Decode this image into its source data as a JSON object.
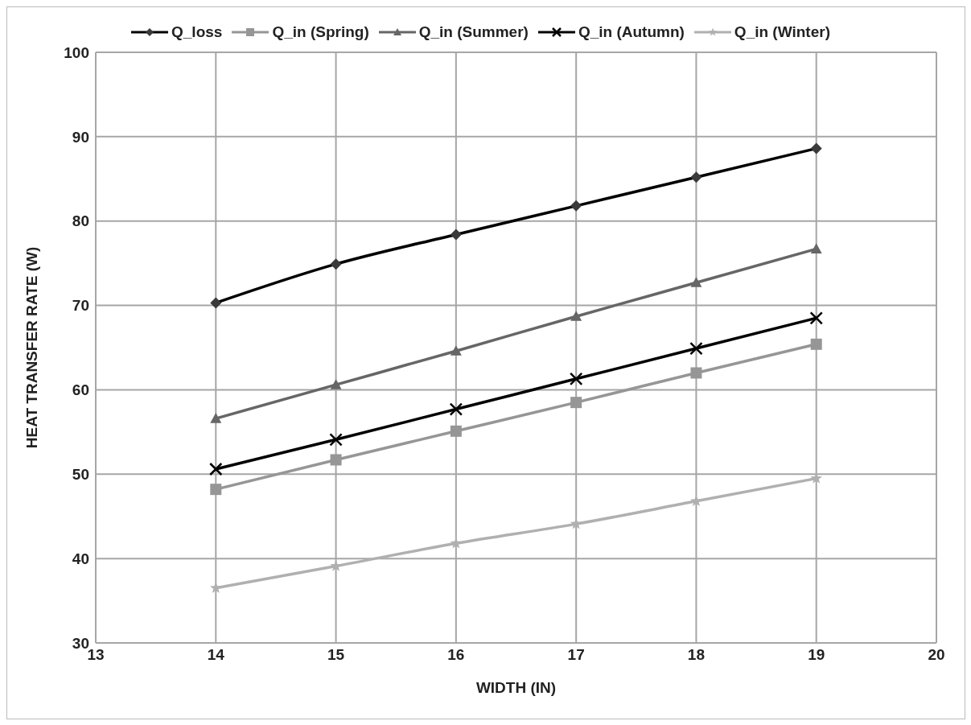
{
  "chart_data": {
    "type": "line",
    "xlabel": "WIDTH (IN)",
    "ylabel": "HEAT TRANSFER RATE (W)",
    "x": [
      14,
      15,
      16,
      17,
      18,
      19
    ],
    "xlim": [
      13,
      20
    ],
    "xticks": [
      13,
      14,
      15,
      16,
      17,
      18,
      19,
      20
    ],
    "ylim": [
      30,
      100
    ],
    "yticks": [
      30,
      40,
      50,
      60,
      70,
      80,
      90,
      100
    ],
    "grid": true,
    "legend": "top",
    "line_style": "solid",
    "series": [
      {
        "name": "Q_loss",
        "color": "#000000",
        "marker": "diamond",
        "values": [
          70.3,
          74.9,
          78.4,
          81.8,
          85.2,
          88.6
        ]
      },
      {
        "name": "Q_in (Spring)",
        "color": "#969696",
        "marker": "square",
        "values": [
          48.2,
          51.7,
          55.1,
          58.5,
          62.0,
          65.4
        ]
      },
      {
        "name": "Q_in (Summer)",
        "color": "#666666",
        "marker": "triangle",
        "values": [
          56.6,
          60.6,
          64.6,
          68.7,
          72.7,
          76.7
        ]
      },
      {
        "name": "Q_in (Autumn)",
        "color": "#000000",
        "marker": "cross",
        "values": [
          50.6,
          54.1,
          57.7,
          61.3,
          64.9,
          68.5
        ]
      },
      {
        "name": "Q_in (Winter)",
        "color": "#b0b0b0",
        "marker": "star",
        "values": [
          36.5,
          39.1,
          41.8,
          44.1,
          46.8,
          49.5
        ]
      }
    ]
  }
}
